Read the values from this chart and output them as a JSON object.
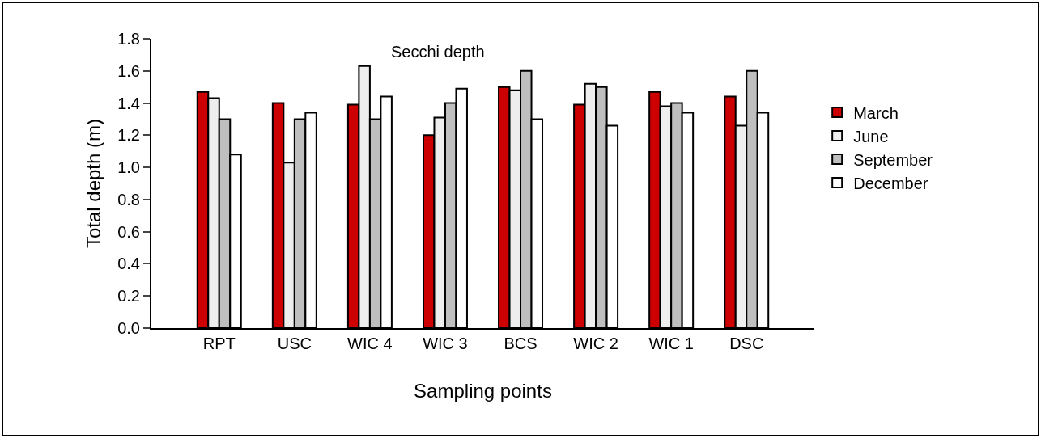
{
  "chart_data": {
    "type": "bar",
    "title": "Secchi depth",
    "xlabel": "Sampling points",
    "ylabel": "Total depth (m)",
    "categories": [
      "RPT",
      "USC",
      "WIC 4",
      "WIC 3",
      "BCS",
      "WIC 2",
      "WIC 1",
      "DSC"
    ],
    "series": [
      {
        "name": "March",
        "color": "#cc0000",
        "values": [
          1.47,
          1.4,
          1.39,
          1.2,
          1.5,
          1.39,
          1.47,
          1.44
        ]
      },
      {
        "name": "June",
        "color": "#eeeeee",
        "values": [
          1.43,
          1.03,
          1.63,
          1.31,
          1.48,
          1.52,
          1.38,
          1.26
        ]
      },
      {
        "name": "September",
        "color": "#bfbfbf",
        "values": [
          1.3,
          1.3,
          1.3,
          1.4,
          1.6,
          1.5,
          1.4,
          1.6
        ]
      },
      {
        "name": "December",
        "color": "#ffffff",
        "values": [
          1.08,
          1.34,
          1.44,
          1.49,
          1.3,
          1.26,
          1.34,
          1.34
        ]
      }
    ],
    "ylim": [
      0,
      1.8
    ],
    "yticks": [
      {
        "value": 0,
        "label": "0.0"
      },
      {
        "value": 0.2,
        "label": "0.2"
      },
      {
        "value": 0.4,
        "label": "0.4"
      },
      {
        "value": 0.6,
        "label": "0.6"
      },
      {
        "value": 0.8,
        "label": "0.8"
      },
      {
        "value": 1.0,
        "label": "1.0"
      },
      {
        "value": 1.2,
        "label": "1.2"
      },
      {
        "value": 1.4,
        "label": "1.4"
      },
      {
        "value": 1.6,
        "label": "1.6"
      },
      {
        "value": 1.8,
        "label": "1.8"
      }
    ],
    "grid": false,
    "legend": "right"
  }
}
